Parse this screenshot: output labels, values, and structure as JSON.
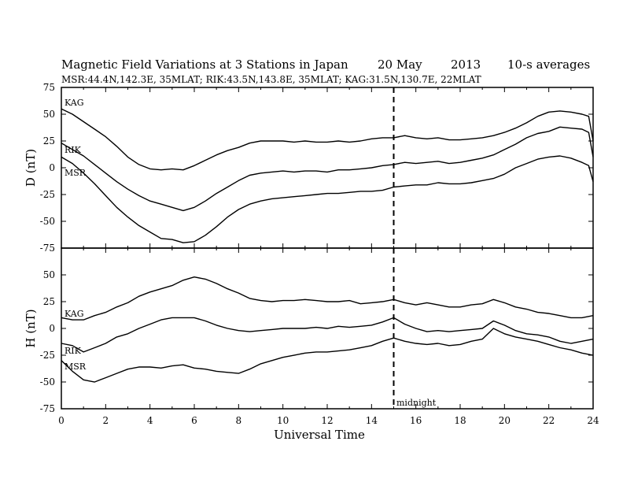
{
  "header": {
    "title": "Magnetic Field Variations at 3 Stations in Japan",
    "date": "20 May",
    "year": "2013",
    "averaging": "10-s averages",
    "station_info": "MSR:44.4N,142.3E, 35MLAT;  RIK:43.5N,143.8E, 35MLAT;  KAG:31.5N,130.7E, 22MLAT"
  },
  "annotations": {
    "midnight": "midnight"
  },
  "chart_data": [
    {
      "type": "line",
      "panel": "D",
      "ylabel": "D (nT)",
      "xlabel": "",
      "xlim": [
        0,
        24
      ],
      "ylim": [
        -75,
        75
      ],
      "yticks": [
        75,
        50,
        25,
        0,
        -25,
        -50,
        -75
      ],
      "yticklabels": [
        "75",
        "50",
        "25",
        "0",
        "-25",
        "-50",
        "-75"
      ],
      "vline_x": 15,
      "series": [
        {
          "name": "KAG",
          "x": [
            0,
            0.5,
            1,
            1.5,
            2,
            2.5,
            3,
            3.5,
            4,
            4.5,
            5,
            5.5,
            6,
            6.5,
            7,
            7.5,
            8,
            8.5,
            9,
            9.5,
            10,
            10.5,
            11,
            11.5,
            12,
            12.5,
            13,
            13.5,
            14,
            14.5,
            15,
            15.5,
            16,
            16.5,
            17,
            17.5,
            18,
            18.5,
            19,
            19.5,
            20,
            20.5,
            21,
            21.5,
            22,
            22.5,
            23,
            23.5,
            23.8,
            24
          ],
          "y": [
            55,
            50,
            43,
            36,
            29,
            20,
            10,
            3,
            -1,
            -2,
            -1,
            -2,
            2,
            7,
            12,
            16,
            19,
            23,
            25,
            25,
            25,
            24,
            25,
            24,
            24,
            25,
            24,
            25,
            27,
            28,
            28,
            30,
            28,
            27,
            28,
            26,
            26,
            27,
            28,
            30,
            33,
            37,
            42,
            48,
            52,
            53,
            52,
            50,
            48,
            25
          ]
        },
        {
          "name": "RIK",
          "x": [
            0,
            0.5,
            1,
            1.5,
            2,
            2.5,
            3,
            3.5,
            4,
            4.5,
            5,
            5.5,
            6,
            6.5,
            7,
            7.5,
            8,
            8.5,
            9,
            9.5,
            10,
            10.5,
            11,
            11.5,
            12,
            12.5,
            13,
            13.5,
            14,
            14.5,
            15,
            15.5,
            16,
            16.5,
            17,
            17.5,
            18,
            18.5,
            19,
            19.5,
            20,
            20.5,
            21,
            21.5,
            22,
            22.5,
            23,
            23.5,
            23.8,
            24
          ],
          "y": [
            23,
            17,
            11,
            3,
            -5,
            -13,
            -20,
            -26,
            -31,
            -34,
            -37,
            -40,
            -37,
            -31,
            -24,
            -18,
            -12,
            -7,
            -5,
            -4,
            -3,
            -4,
            -3,
            -3,
            -4,
            -2,
            -2,
            -1,
            0,
            2,
            3,
            5,
            4,
            5,
            6,
            4,
            5,
            7,
            9,
            12,
            17,
            22,
            28,
            32,
            34,
            38,
            37,
            36,
            33,
            10
          ]
        },
        {
          "name": "MSR",
          "x": [
            0,
            0.5,
            1,
            1.5,
            2,
            2.5,
            3,
            3.5,
            4,
            4.5,
            5,
            5.5,
            6,
            6.5,
            7,
            7.5,
            8,
            8.5,
            9,
            9.5,
            10,
            10.5,
            11,
            11.5,
            12,
            12.5,
            13,
            13.5,
            14,
            14.5,
            15,
            15.5,
            16,
            16.5,
            17,
            17.5,
            18,
            18.5,
            19,
            19.5,
            20,
            20.5,
            21,
            21.5,
            22,
            22.5,
            23,
            23.5,
            23.8,
            24
          ],
          "y": [
            10,
            4,
            -5,
            -15,
            -26,
            -37,
            -46,
            -54,
            -60,
            -66,
            -67,
            -70,
            -69,
            -63,
            -55,
            -46,
            -39,
            -34,
            -31,
            -29,
            -28,
            -27,
            -26,
            -25,
            -24,
            -24,
            -23,
            -22,
            -22,
            -21,
            -18,
            -17,
            -16,
            -16,
            -14,
            -15,
            -15,
            -14,
            -12,
            -10,
            -6,
            0,
            4,
            8,
            10,
            11,
            9,
            5,
            2,
            -13
          ]
        }
      ]
    },
    {
      "type": "line",
      "panel": "H",
      "ylabel": "H (nT)",
      "xlabel": "Universal Time",
      "xlim": [
        0,
        24
      ],
      "ylim": [
        -75,
        75
      ],
      "xticks": [
        0,
        2,
        4,
        6,
        8,
        10,
        12,
        14,
        16,
        18,
        20,
        22,
        24
      ],
      "xticklabels": [
        "0",
        "2",
        "4",
        "6",
        "8",
        "10",
        "12",
        "14",
        "16",
        "18",
        "20",
        "22",
        "24"
      ],
      "yticks": [
        50,
        25,
        0,
        -25,
        -50,
        -75
      ],
      "yticklabels": [
        "50",
        "25",
        "0",
        "-25",
        "-50",
        "-75"
      ],
      "vline_x": 15,
      "series": [
        {
          "name": "KAG",
          "x": [
            0,
            0.5,
            1,
            1.5,
            2,
            2.5,
            3,
            3.5,
            4,
            4.5,
            5,
            5.5,
            6,
            6.5,
            7,
            7.5,
            8,
            8.5,
            9,
            9.5,
            10,
            10.5,
            11,
            11.5,
            12,
            12.5,
            13,
            13.5,
            14,
            14.5,
            15,
            15.5,
            16,
            16.5,
            17,
            17.5,
            18,
            18.5,
            19,
            19.5,
            20,
            20.5,
            21,
            21.5,
            22,
            22.5,
            23,
            23.5,
            24
          ],
          "y": [
            10,
            8,
            8,
            12,
            15,
            20,
            24,
            30,
            34,
            37,
            40,
            45,
            48,
            46,
            42,
            37,
            33,
            28,
            26,
            25,
            26,
            26,
            27,
            26,
            25,
            25,
            26,
            23,
            24,
            25,
            27,
            24,
            22,
            24,
            22,
            20,
            20,
            22,
            23,
            27,
            24,
            20,
            18,
            15,
            14,
            12,
            10,
            10,
            12
          ]
        },
        {
          "name": "RIK",
          "x": [
            0,
            0.5,
            1,
            1.5,
            2,
            2.5,
            3,
            3.5,
            4,
            4.5,
            5,
            5.5,
            6,
            6.5,
            7,
            7.5,
            8,
            8.5,
            9,
            9.5,
            10,
            10.5,
            11,
            11.5,
            12,
            12.5,
            13,
            13.5,
            14,
            14.5,
            15,
            15.5,
            16,
            16.5,
            17,
            17.5,
            18,
            18.5,
            19,
            19.5,
            20,
            20.5,
            21,
            21.5,
            22,
            22.5,
            23,
            23.5,
            24
          ],
          "y": [
            -14,
            -16,
            -22,
            -18,
            -14,
            -8,
            -5,
            0,
            4,
            8,
            10,
            10,
            10,
            7,
            3,
            0,
            -2,
            -3,
            -2,
            -1,
            0,
            0,
            0,
            1,
            0,
            2,
            1,
            2,
            3,
            6,
            10,
            4,
            0,
            -3,
            -2,
            -3,
            -2,
            -1,
            0,
            7,
            3,
            -2,
            -5,
            -6,
            -8,
            -12,
            -14,
            -12,
            -10
          ]
        },
        {
          "name": "MSR",
          "x": [
            0,
            0.5,
            1,
            1.5,
            2,
            2.5,
            3,
            3.5,
            4,
            4.5,
            5,
            5.5,
            6,
            6.5,
            7,
            7.5,
            8,
            8.5,
            9,
            9.5,
            10,
            10.5,
            11,
            11.5,
            12,
            12.5,
            13,
            13.5,
            14,
            14.5,
            15,
            15.5,
            16,
            16.5,
            17,
            17.5,
            18,
            18.5,
            19,
            19.5,
            20,
            20.5,
            21,
            21.5,
            22,
            22.5,
            23,
            23.5,
            24
          ],
          "y": [
            -30,
            -40,
            -48,
            -50,
            -46,
            -42,
            -38,
            -36,
            -36,
            -37,
            -35,
            -34,
            -37,
            -38,
            -40,
            -41,
            -42,
            -38,
            -33,
            -30,
            -27,
            -25,
            -23,
            -22,
            -22,
            -21,
            -20,
            -18,
            -16,
            -12,
            -9,
            -12,
            -14,
            -15,
            -14,
            -16,
            -15,
            -12,
            -10,
            0,
            -5,
            -8,
            -10,
            -12,
            -15,
            -18,
            -20,
            -23,
            -25
          ]
        }
      ]
    }
  ]
}
